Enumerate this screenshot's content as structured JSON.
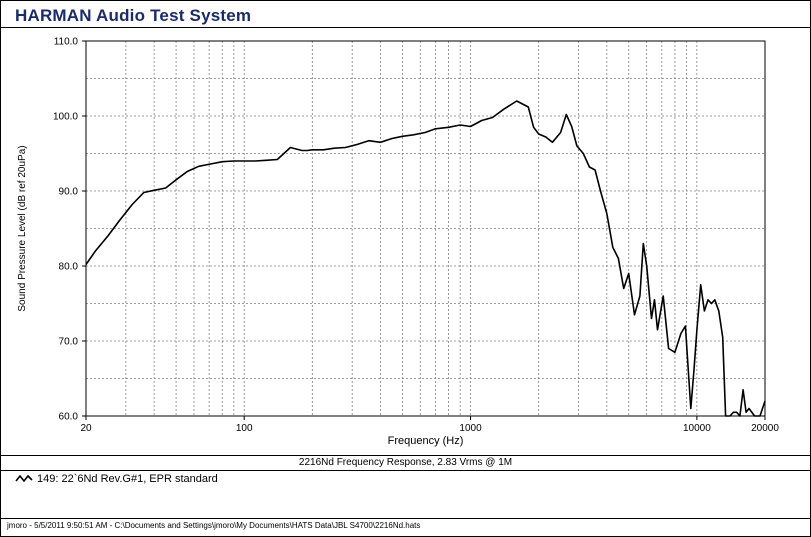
{
  "app": {
    "title": "HARMAN Audio Test System"
  },
  "chart_caption": "2216Nd Frequency Response, 2.83 Vrms @ 1M",
  "legend": {
    "entry_label": "149: 22`6Nd Rev.G#1, EPR standard",
    "icon": "wave-icon"
  },
  "status": {
    "text": "jmoro - 5/5/2011 9:50:51 AM - C:\\Documents and Settings\\jmoro\\My Documents\\HATS Data\\JBL S4700\\2216Nd.hats"
  },
  "colors": {
    "title": "#1a2a6b",
    "curve": "#000000",
    "grid": "#808080"
  },
  "chart_data": {
    "type": "line",
    "title": "2216Nd Frequency Response, 2.83 Vrms @ 1M",
    "xlabel": "Frequency (Hz)",
    "ylabel": "Sound Pressure Level (dB ref 20uPa)",
    "x_scale": "log",
    "xlim": [
      20,
      20000
    ],
    "ylim": [
      60,
      110
    ],
    "grid": true,
    "x_tick_labels": [
      "20",
      "100",
      "1000",
      "10000",
      "20000"
    ],
    "x_ticks": [
      20,
      100,
      1000,
      10000,
      20000
    ],
    "y_tick_labels": [
      "60.0",
      "70.0",
      "80.0",
      "90.0",
      "100.0",
      "110.0"
    ],
    "y_ticks": [
      60,
      70,
      80,
      90,
      100,
      110
    ],
    "series": [
      {
        "name": "149: 22`6Nd Rev.G#1, EPR standard",
        "x": [
          20,
          22,
          25,
          28,
          32,
          36,
          40,
          45,
          50,
          56,
          63,
          71,
          80,
          90,
          100,
          112,
          125,
          140,
          160,
          180,
          190,
          200,
          224,
          250,
          280,
          315,
          355,
          400,
          450,
          500,
          560,
          630,
          700,
          800,
          900,
          1000,
          1120,
          1250,
          1400,
          1600,
          1800,
          1900,
          2000,
          2150,
          2300,
          2500,
          2650,
          2800,
          2950,
          3150,
          3350,
          3550,
          3750,
          4000,
          4250,
          4500,
          4750,
          5000,
          5300,
          5600,
          5800,
          6000,
          6300,
          6500,
          6700,
          7100,
          7500,
          8000,
          8500,
          8900,
          9100,
          9400,
          9700,
          10000,
          10400,
          10800,
          11200,
          11600,
          12000,
          12500,
          13000,
          13400,
          14000,
          14500,
          15000,
          15500,
          16000,
          16500,
          17000,
          18000,
          19000,
          20000
        ],
        "y": [
          80.2,
          82.0,
          84.0,
          86.0,
          88.2,
          89.8,
          90.1,
          90.4,
          91.5,
          92.6,
          93.3,
          93.6,
          93.9,
          94.0,
          94.0,
          94.0,
          94.1,
          94.2,
          95.8,
          95.4,
          95.4,
          95.5,
          95.5,
          95.7,
          95.8,
          96.2,
          96.7,
          96.5,
          97.0,
          97.3,
          97.5,
          97.8,
          98.3,
          98.5,
          98.8,
          98.6,
          99.4,
          99.8,
          100.9,
          102.0,
          101.2,
          98.5,
          97.6,
          97.2,
          96.5,
          97.8,
          100.2,
          98.6,
          96.0,
          95.0,
          93.2,
          92.8,
          90.0,
          87.0,
          82.5,
          81.0,
          77.0,
          79.0,
          73.5,
          76.0,
          83.0,
          80.0,
          73.0,
          75.5,
          71.5,
          76.0,
          69.0,
          68.5,
          71.0,
          72.0,
          67.5,
          61.0,
          66.0,
          71.5,
          77.5,
          74.0,
          75.5,
          75.0,
          75.5,
          74.0,
          70.5,
          60.0,
          60.0,
          60.5,
          60.5,
          60.0,
          63.5,
          60.5,
          61.0,
          60.0,
          60.0,
          62.0
        ]
      }
    ]
  }
}
